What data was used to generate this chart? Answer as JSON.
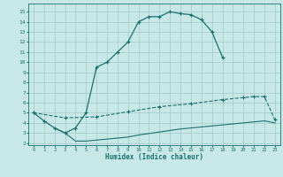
{
  "title": "",
  "xlabel": "Humidex (Indice chaleur)",
  "bg_color": "#c8e8e8",
  "grid_color": "#a0c8c8",
  "line_color": "#1a7070",
  "xlim": [
    -0.5,
    23.5
  ],
  "ylim": [
    1.8,
    15.8
  ],
  "xticks": [
    0,
    1,
    2,
    3,
    4,
    5,
    6,
    7,
    8,
    9,
    10,
    11,
    12,
    13,
    14,
    15,
    16,
    17,
    18,
    19,
    20,
    21,
    22,
    23
  ],
  "yticks": [
    2,
    3,
    4,
    5,
    6,
    7,
    8,
    9,
    10,
    11,
    12,
    13,
    14,
    15
  ],
  "line1_x": [
    0,
    1,
    2,
    3,
    4,
    5,
    6,
    7,
    8,
    9,
    10,
    11,
    12,
    13,
    14,
    15,
    16,
    17,
    18
  ],
  "line1_y": [
    5.0,
    4.2,
    3.5,
    3.0,
    3.5,
    5.0,
    9.5,
    10.0,
    11.0,
    12.0,
    14.0,
    14.5,
    14.5,
    15.0,
    14.8,
    14.7,
    14.2,
    13.0,
    10.5
  ],
  "line2_x": [
    0,
    3,
    6,
    9,
    12,
    15,
    18,
    20,
    21,
    22,
    23
  ],
  "line2_y": [
    5.0,
    4.5,
    4.6,
    5.1,
    5.6,
    5.9,
    6.3,
    6.5,
    6.6,
    6.6,
    4.3
  ],
  "line3_x": [
    2,
    3,
    4,
    5,
    6,
    7,
    8,
    9,
    10,
    12,
    14,
    16,
    18,
    20,
    22,
    23
  ],
  "line3_y": [
    3.5,
    3.0,
    2.2,
    2.2,
    2.3,
    2.4,
    2.5,
    2.6,
    2.8,
    3.1,
    3.4,
    3.6,
    3.8,
    4.0,
    4.2,
    4.0
  ]
}
